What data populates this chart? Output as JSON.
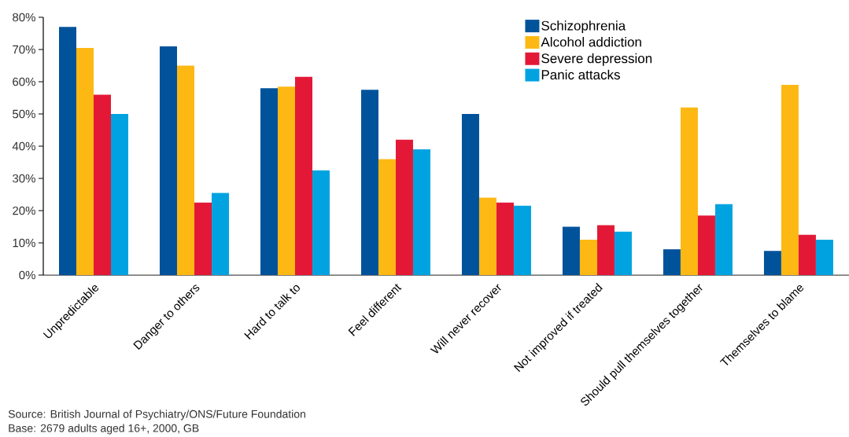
{
  "chart_data": {
    "type": "bar",
    "categories": [
      "Unpredictable",
      "Danger to others",
      "Hard to talk to",
      "Feel different",
      "Will never recover",
      "Not improved if treated",
      "Should pull themselves together",
      "Themselves to blame"
    ],
    "series": [
      {
        "name": "Schizophrenia",
        "color": "#00529b",
        "values": [
          77,
          71,
          58,
          57.5,
          50,
          15,
          8,
          7.5
        ]
      },
      {
        "name": "Alcohol addiction",
        "color": "#fdb813",
        "values": [
          70.5,
          65,
          58.5,
          36,
          24,
          11,
          52,
          59
        ]
      },
      {
        "name": "Severe depression",
        "color": "#e31837",
        "values": [
          56,
          22.5,
          61.5,
          42,
          22.5,
          15.5,
          18.5,
          12.5
        ]
      },
      {
        "name": "Panic attacks",
        "color": "#00a3e0",
        "values": [
          50,
          25.5,
          32.5,
          39,
          21.5,
          13.5,
          22,
          11
        ]
      }
    ],
    "ylim": [
      0,
      80
    ],
    "yticks": [
      {
        "value": 0,
        "label": "0%"
      },
      {
        "value": 10,
        "label": "10%"
      },
      {
        "value": 20,
        "label": "20%"
      },
      {
        "value": 30,
        "label": "30%"
      },
      {
        "value": 40,
        "label": "40%"
      },
      {
        "value": 50,
        "label": "50%"
      },
      {
        "value": 60,
        "label": "60%"
      },
      {
        "value": 70,
        "label": "70%"
      },
      {
        "value": 80,
        "label": "80%"
      }
    ],
    "grid": false,
    "legend": "top right",
    "annotations": [
      "Source: British Journal of Psychiatry/ONS/Future Foundation",
      "Base: 2679 adults aged 16+, 2000, GB"
    ]
  }
}
